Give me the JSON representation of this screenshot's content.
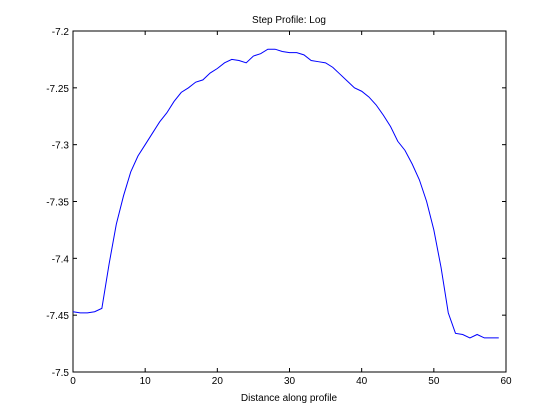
{
  "chart_data": {
    "type": "line",
    "title": "Step Profile: Log",
    "xlabel": "Distance along profile",
    "ylabel": "",
    "xlim": [
      0,
      60
    ],
    "ylim": [
      -7.5,
      -7.2
    ],
    "xticks": [
      0,
      10,
      20,
      30,
      40,
      50,
      60
    ],
    "yticks": [
      -7.5,
      -7.45,
      -7.4,
      -7.35,
      -7.3,
      -7.25,
      -7.2
    ],
    "xtick_labels": [
      "0",
      "10",
      "20",
      "30",
      "40",
      "50",
      "60"
    ],
    "ytick_labels": [
      "-7.5",
      "-7.45",
      "-7.4",
      "-7.35",
      "-7.3",
      "-7.25",
      "-7.2"
    ],
    "grid": false,
    "legend": "none",
    "series": [
      {
        "color": "#0000ff",
        "x": [
          0,
          1,
          2,
          3,
          4,
          5,
          6,
          7,
          8,
          9,
          10,
          11,
          12,
          13,
          14,
          15,
          16,
          17,
          18,
          19,
          20,
          21,
          22,
          23,
          24,
          25,
          26,
          27,
          28,
          29,
          30,
          31,
          32,
          33,
          34,
          35,
          36,
          37,
          38,
          39,
          40,
          41,
          42,
          43,
          44,
          45,
          46,
          47,
          48,
          49,
          50,
          51,
          52,
          53,
          54,
          55,
          56,
          57,
          58,
          59
        ],
        "y": [
          -7.447,
          -7.448,
          -7.448,
          -7.447,
          -7.444,
          -7.405,
          -7.37,
          -7.345,
          -7.324,
          -7.31,
          -7.3,
          -7.29,
          -7.28,
          -7.272,
          -7.262,
          -7.254,
          -7.25,
          -7.245,
          -7.243,
          -7.237,
          -7.233,
          -7.228,
          -7.225,
          -7.226,
          -7.228,
          -7.222,
          -7.22,
          -7.216,
          -7.216,
          -7.218,
          -7.219,
          -7.219,
          -7.221,
          -7.226,
          -7.227,
          -7.228,
          -7.232,
          -7.238,
          -7.244,
          -7.25,
          -7.253,
          -7.258,
          -7.265,
          -7.274,
          -7.284,
          -7.297,
          -7.305,
          -7.317,
          -7.331,
          -7.35,
          -7.375,
          -7.408,
          -7.448,
          -7.466,
          -7.467,
          -7.47,
          -7.467,
          -7.47,
          -7.47,
          -7.47
        ]
      }
    ]
  }
}
